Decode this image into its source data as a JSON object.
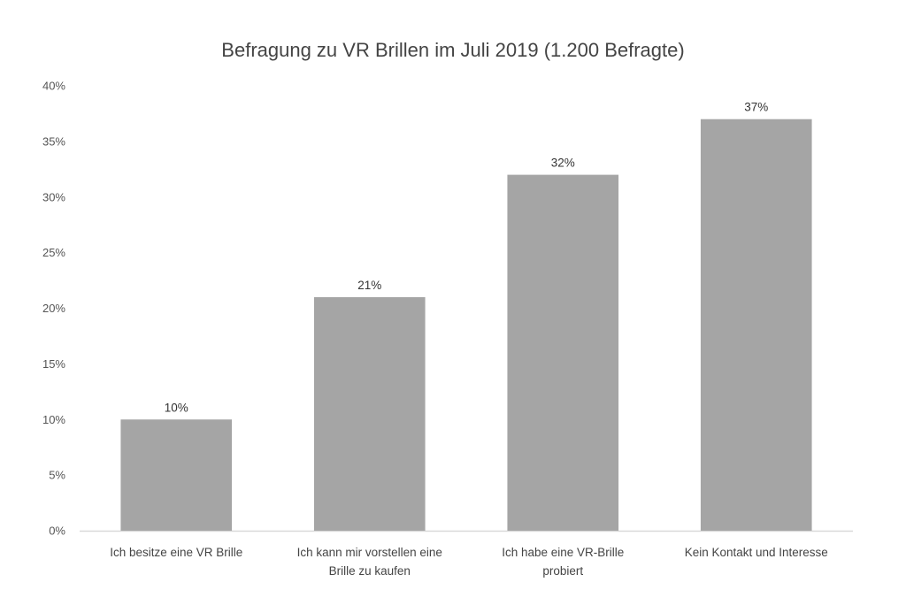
{
  "chart_data": {
    "type": "bar",
    "title": "Befragung zu VR Brillen im Juli 2019 (1.200 Befragte)",
    "categories": [
      [
        "Ich besitze eine VR Brille"
      ],
      [
        "Ich kann mir vorstellen eine",
        "Brille zu kaufen"
      ],
      [
        "Ich habe eine VR-Brille",
        "probiert"
      ],
      [
        "Kein Kontakt und Interesse"
      ]
    ],
    "values": [
      10,
      21,
      32,
      37
    ],
    "data_labels": [
      "10%",
      "21%",
      "32%",
      "37%"
    ],
    "ylim": [
      0,
      40
    ],
    "yticks": [
      0,
      5,
      10,
      15,
      20,
      25,
      30,
      35,
      40
    ],
    "ytick_labels": [
      "0%",
      "5%",
      "10%",
      "15%",
      "20%",
      "25%",
      "30%",
      "35%",
      "40%"
    ],
    "xlabel": "",
    "ylabel": "",
    "grid": false,
    "legend": "none",
    "bar_color": "#a5a5a5",
    "axis_color": "#d9d9d9"
  }
}
